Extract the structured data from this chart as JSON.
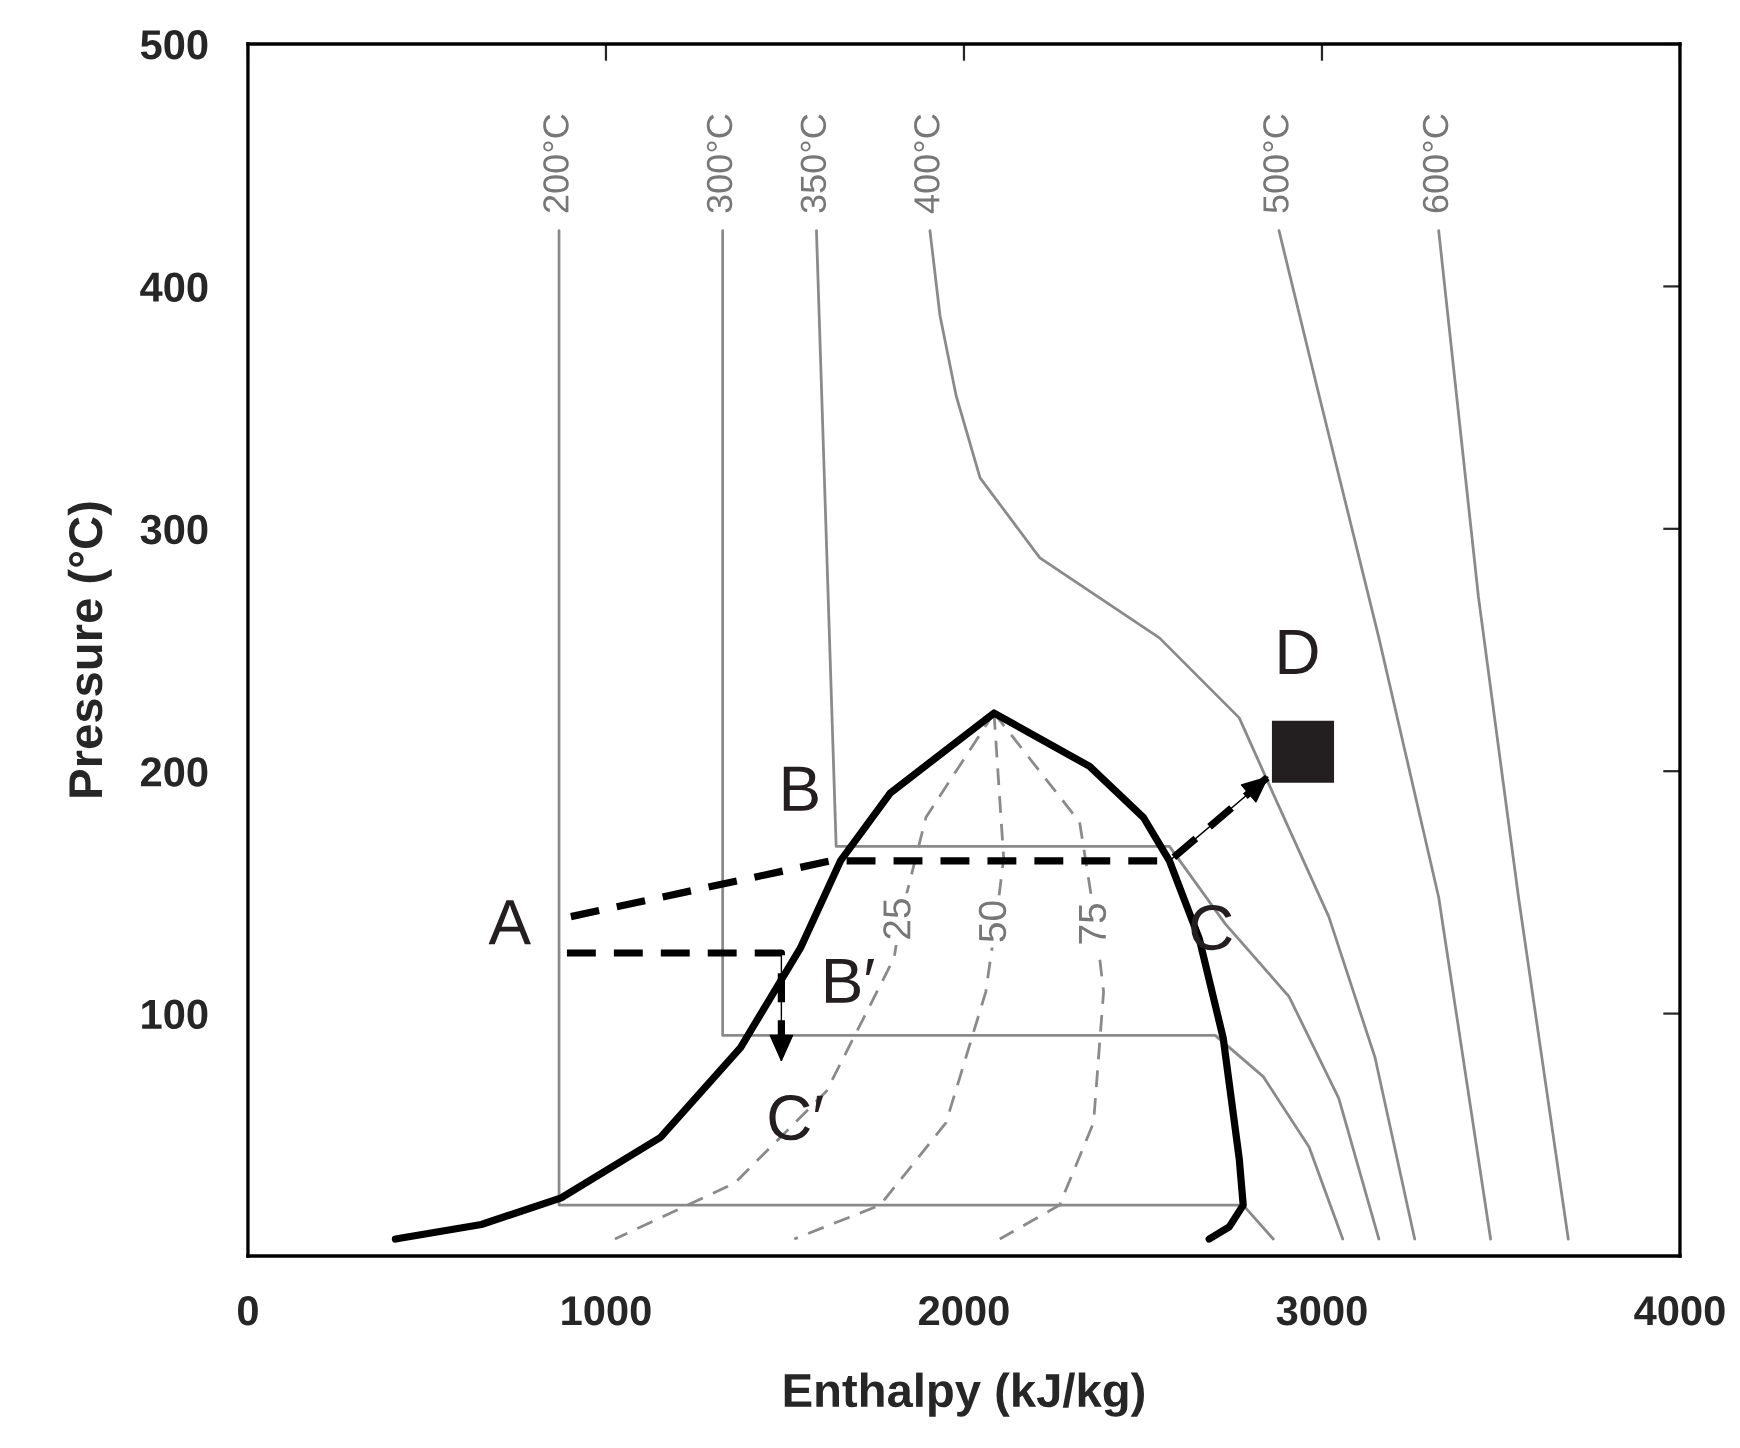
{
  "chart_data": {
    "type": "line",
    "xlabel": "Enthalpy (kJ/kg)",
    "ylabel": "Pressure (°C)",
    "xlim": [
      0,
      4000
    ],
    "xticks": [
      0,
      1000,
      2000,
      3000,
      4000
    ],
    "ylim": [
      0,
      500
    ],
    "yticks": [
      100,
      200,
      300,
      400,
      500
    ],
    "grid": false,
    "marker": "none",
    "series": [
      {
        "name": "200°C",
        "color": "#8a8a8a",
        "line_style": "solid",
        "x": [
          869,
          869,
          2780,
          2864
        ],
        "values": [
          423,
          21,
          21,
          7
        ]
      },
      {
        "name": "300°C",
        "color": "#8a8a8a",
        "line_style": "solid",
        "x": [
          1326,
          1326,
          2702,
          2836,
          2964,
          3058
        ],
        "values": [
          423,
          91,
          91,
          74,
          45,
          7
        ]
      },
      {
        "name": "350°C",
        "color": "#8a8a8a",
        "line_style": "solid",
        "x": [
          1588,
          1643,
          2574,
          2730,
          2908,
          3047,
          3159
        ],
        "values": [
          423,
          169,
          169,
          137,
          107,
          65,
          7
        ]
      },
      {
        "name": "400°C",
        "color": "#8a8a8a",
        "line_style": "solid",
        "x": [
          1905,
          1933,
          1978,
          2045,
          2212,
          2546,
          2769,
          2869,
          3019,
          3148,
          3259
        ],
        "values": [
          423,
          388,
          355,
          321,
          288,
          255,
          222,
          189,
          140,
          82,
          7
        ]
      },
      {
        "name": "500°C",
        "color": "#8a8a8a",
        "line_style": "solid",
        "x": [
          2880,
          2992,
          3159,
          3326,
          3471
        ],
        "values": [
          423,
          355,
          255,
          148,
          7
        ]
      },
      {
        "name": "600°C",
        "color": "#8a8a8a",
        "line_style": "solid",
        "x": [
          3326,
          3437,
          3549,
          3688
        ],
        "values": [
          423,
          272,
          148,
          7
        ]
      },
      {
        "name": "25",
        "color": "#8a8a8a",
        "line_style": "dashed",
        "x": [
          2084,
          1894,
          1822,
          1805,
          1616,
          1359,
          1025
        ],
        "values": [
          224,
          181,
          139,
          123,
          68,
          30,
          7
        ]
      },
      {
        "name": "50",
        "color": "#8a8a8a",
        "line_style": "dashed",
        "x": [
          2084,
          2111,
          2089,
          2061,
          1950,
          1766,
          1526
        ],
        "values": [
          224,
          164,
          138,
          109,
          55,
          21,
          7
        ]
      },
      {
        "name": "75",
        "color": "#8a8a8a",
        "line_style": "dashed",
        "x": [
          2084,
          2323,
          2368,
          2390,
          2362,
          2267,
          2100
        ],
        "values": [
          224,
          179,
          137,
          109,
          55,
          21,
          7
        ]
      },
      {
        "color": "#000000",
        "line_style": "solid",
        "x": [
          412,
          652,
          875,
          1153,
          1376,
          1543,
          1655,
          1794,
          2084,
          2351,
          2501,
          2574,
          2657,
          2724,
          2769,
          2780,
          2741,
          2685
        ],
        "values": [
          7,
          13,
          24,
          49,
          86,
          127,
          163,
          191,
          224,
          202,
          181,
          163,
          131,
          90,
          40,
          21,
          12,
          7
        ]
      },
      {
        "color": "#000000",
        "line_style": "dashed",
        "x": [
          902,
          1627,
          2574,
          2852
        ],
        "values": [
          140,
          163,
          163,
          198
        ]
      },
      {
        "color": "#000000",
        "line_style": "dashed",
        "x": [
          891,
          1490,
          1490
        ],
        "values": [
          125,
          125,
          80
        ]
      },
      {
        "type": "scatter",
        "color": "#231f20",
        "marker": "square",
        "x": [
          2947
        ],
        "values": [
          208
        ]
      }
    ],
    "annotations": [
      "A",
      "B",
      {
        "text": "C",
        "x": 2574,
        "y": 163
      },
      "B′",
      "C′",
      "D"
    ]
  }
}
